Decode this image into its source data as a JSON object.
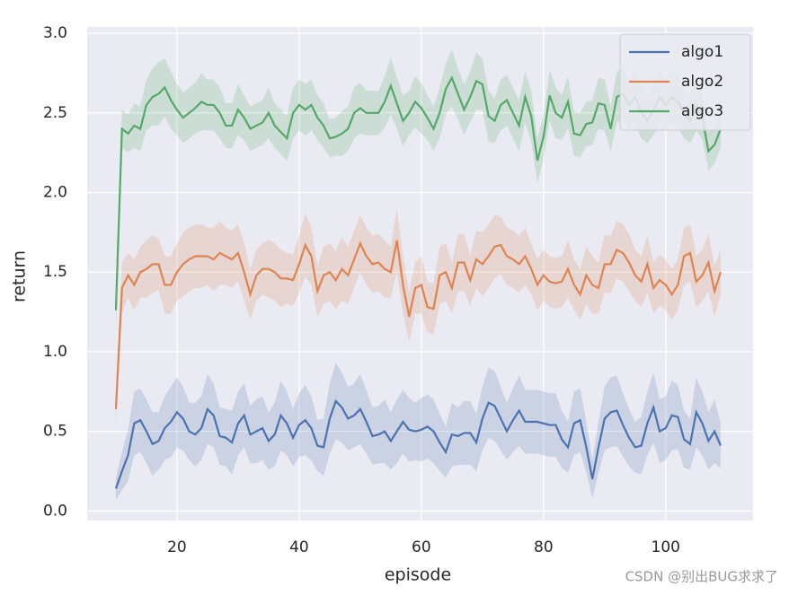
{
  "chart_data": {
    "type": "line",
    "x_label": "episode",
    "y_label": "return",
    "watermark": "CSDN @别出BUG求求了",
    "x": [
      10,
      11,
      12,
      13,
      14,
      15,
      16,
      17,
      18,
      19,
      20,
      21,
      22,
      23,
      24,
      25,
      26,
      27,
      28,
      29,
      30,
      31,
      32,
      33,
      34,
      35,
      36,
      37,
      38,
      39,
      40,
      41,
      42,
      43,
      44,
      45,
      46,
      47,
      48,
      49,
      50,
      51,
      52,
      53,
      54,
      55,
      56,
      57,
      58,
      59,
      60,
      61,
      62,
      63,
      64,
      65,
      66,
      67,
      68,
      69,
      70,
      71,
      72,
      73,
      74,
      75,
      76,
      77,
      78,
      79,
      80,
      81,
      82,
      83,
      84,
      85,
      86,
      87,
      88,
      89,
      90,
      91,
      92,
      93,
      94,
      95,
      96,
      97,
      98,
      99,
      100,
      101,
      102,
      103,
      104,
      105,
      106,
      107,
      108,
      109
    ],
    "series": [
      {
        "name": "algo1",
        "color": "#4c72b0",
        "values": [
          0.14,
          0.25,
          0.35,
          0.55,
          0.57,
          0.5,
          0.42,
          0.44,
          0.52,
          0.56,
          0.62,
          0.58,
          0.5,
          0.48,
          0.52,
          0.64,
          0.6,
          0.47,
          0.46,
          0.43,
          0.55,
          0.6,
          0.48,
          0.5,
          0.52,
          0.44,
          0.48,
          0.6,
          0.55,
          0.46,
          0.54,
          0.57,
          0.52,
          0.41,
          0.4,
          0.58,
          0.69,
          0.65,
          0.58,
          0.6,
          0.64,
          0.56,
          0.47,
          0.48,
          0.5,
          0.44,
          0.5,
          0.56,
          0.51,
          0.5,
          0.51,
          0.53,
          0.5,
          0.43,
          0.37,
          0.48,
          0.47,
          0.49,
          0.49,
          0.43,
          0.58,
          0.68,
          0.66,
          0.58,
          0.5,
          0.57,
          0.63,
          0.56,
          0.56,
          0.56,
          0.55,
          0.54,
          0.54,
          0.45,
          0.4,
          0.55,
          0.57,
          0.4,
          0.2,
          0.4,
          0.58,
          0.62,
          0.63,
          0.54,
          0.46,
          0.4,
          0.41,
          0.55,
          0.65,
          0.5,
          0.52,
          0.6,
          0.59,
          0.45,
          0.42,
          0.62,
          0.55,
          0.44,
          0.5,
          0.41
        ],
        "ci": [
          0.07,
          0.12,
          0.16,
          0.2,
          0.2,
          0.2,
          0.2,
          0.18,
          0.2,
          0.22,
          0.22,
          0.2,
          0.18,
          0.2,
          0.2,
          0.22,
          0.2,
          0.18,
          0.18,
          0.2,
          0.2,
          0.2,
          0.18,
          0.2,
          0.2,
          0.18,
          0.2,
          0.22,
          0.2,
          0.18,
          0.2,
          0.22,
          0.2,
          0.16,
          0.18,
          0.22,
          0.24,
          0.22,
          0.2,
          0.2,
          0.22,
          0.2,
          0.18,
          0.18,
          0.2,
          0.18,
          0.2,
          0.2,
          0.2,
          0.18,
          0.2,
          0.2,
          0.2,
          0.18,
          0.16,
          0.2,
          0.18,
          0.2,
          0.2,
          0.18,
          0.2,
          0.22,
          0.22,
          0.2,
          0.18,
          0.2,
          0.22,
          0.2,
          0.2,
          0.2,
          0.2,
          0.2,
          0.2,
          0.18,
          0.16,
          0.2,
          0.2,
          0.16,
          0.12,
          0.16,
          0.2,
          0.22,
          0.22,
          0.2,
          0.18,
          0.16,
          0.18,
          0.2,
          0.22,
          0.2,
          0.2,
          0.22,
          0.2,
          0.18,
          0.16,
          0.22,
          0.2,
          0.18,
          0.2,
          0.14
        ]
      },
      {
        "name": "algo2",
        "color": "#dd8452",
        "values": [
          0.64,
          1.4,
          1.48,
          1.42,
          1.5,
          1.52,
          1.55,
          1.55,
          1.42,
          1.42,
          1.5,
          1.55,
          1.58,
          1.6,
          1.6,
          1.6,
          1.58,
          1.62,
          1.6,
          1.58,
          1.62,
          1.5,
          1.36,
          1.48,
          1.52,
          1.52,
          1.5,
          1.46,
          1.46,
          1.45,
          1.55,
          1.67,
          1.6,
          1.38,
          1.48,
          1.5,
          1.45,
          1.52,
          1.48,
          1.58,
          1.68,
          1.6,
          1.55,
          1.56,
          1.52,
          1.5,
          1.7,
          1.42,
          1.22,
          1.4,
          1.42,
          1.28,
          1.27,
          1.48,
          1.5,
          1.4,
          1.56,
          1.56,
          1.45,
          1.58,
          1.55,
          1.6,
          1.66,
          1.67,
          1.6,
          1.58,
          1.55,
          1.6,
          1.52,
          1.42,
          1.48,
          1.44,
          1.43,
          1.44,
          1.52,
          1.42,
          1.36,
          1.48,
          1.42,
          1.4,
          1.55,
          1.55,
          1.64,
          1.62,
          1.56,
          1.48,
          1.44,
          1.55,
          1.4,
          1.45,
          1.42,
          1.36,
          1.42,
          1.6,
          1.62,
          1.44,
          1.48,
          1.56,
          1.38,
          1.5
        ],
        "ci": [
          0.1,
          0.16,
          0.14,
          0.16,
          0.16,
          0.18,
          0.18,
          0.16,
          0.18,
          0.18,
          0.18,
          0.2,
          0.2,
          0.2,
          0.2,
          0.18,
          0.2,
          0.2,
          0.18,
          0.18,
          0.18,
          0.18,
          0.16,
          0.16,
          0.16,
          0.18,
          0.18,
          0.18,
          0.16,
          0.16,
          0.18,
          0.2,
          0.18,
          0.16,
          0.18,
          0.18,
          0.18,
          0.2,
          0.18,
          0.18,
          0.18,
          0.18,
          0.18,
          0.18,
          0.18,
          0.16,
          0.2,
          0.18,
          0.16,
          0.16,
          0.18,
          0.16,
          0.16,
          0.18,
          0.18,
          0.16,
          0.18,
          0.18,
          0.16,
          0.18,
          0.2,
          0.2,
          0.2,
          0.18,
          0.18,
          0.18,
          0.18,
          0.18,
          0.16,
          0.16,
          0.16,
          0.16,
          0.16,
          0.16,
          0.18,
          0.16,
          0.16,
          0.18,
          0.18,
          0.16,
          0.18,
          0.18,
          0.18,
          0.18,
          0.18,
          0.16,
          0.16,
          0.18,
          0.16,
          0.16,
          0.16,
          0.16,
          0.16,
          0.18,
          0.18,
          0.16,
          0.16,
          0.18,
          0.16,
          0.14
        ]
      },
      {
        "name": "algo3",
        "color": "#55a868",
        "values": [
          1.26,
          2.4,
          2.37,
          2.42,
          2.4,
          2.55,
          2.6,
          2.62,
          2.66,
          2.58,
          2.52,
          2.47,
          2.5,
          2.53,
          2.57,
          2.55,
          2.55,
          2.5,
          2.42,
          2.42,
          2.52,
          2.47,
          2.4,
          2.42,
          2.44,
          2.5,
          2.42,
          2.38,
          2.34,
          2.5,
          2.55,
          2.52,
          2.55,
          2.47,
          2.42,
          2.34,
          2.35,
          2.37,
          2.4,
          2.5,
          2.53,
          2.5,
          2.5,
          2.5,
          2.57,
          2.67,
          2.56,
          2.45,
          2.5,
          2.57,
          2.53,
          2.47,
          2.4,
          2.5,
          2.65,
          2.72,
          2.62,
          2.52,
          2.6,
          2.7,
          2.68,
          2.48,
          2.45,
          2.55,
          2.58,
          2.5,
          2.42,
          2.6,
          2.48,
          2.2,
          2.35,
          2.61,
          2.5,
          2.47,
          2.57,
          2.37,
          2.36,
          2.43,
          2.44,
          2.56,
          2.55,
          2.4,
          2.6,
          2.62,
          2.55,
          2.6,
          2.5,
          2.45,
          2.52,
          2.6,
          2.55,
          2.6,
          2.57,
          2.5,
          2.45,
          2.55,
          2.47,
          2.26,
          2.3,
          2.4
        ],
        "ci": [
          0.12,
          0.12,
          0.12,
          0.14,
          0.14,
          0.16,
          0.18,
          0.2,
          0.18,
          0.18,
          0.16,
          0.16,
          0.16,
          0.16,
          0.18,
          0.16,
          0.16,
          0.16,
          0.14,
          0.14,
          0.16,
          0.14,
          0.14,
          0.14,
          0.14,
          0.16,
          0.14,
          0.14,
          0.14,
          0.16,
          0.16,
          0.16,
          0.16,
          0.14,
          0.14,
          0.12,
          0.12,
          0.14,
          0.14,
          0.16,
          0.16,
          0.14,
          0.14,
          0.14,
          0.16,
          0.18,
          0.16,
          0.16,
          0.14,
          0.16,
          0.16,
          0.14,
          0.14,
          0.16,
          0.16,
          0.18,
          0.16,
          0.16,
          0.16,
          0.18,
          0.16,
          0.16,
          0.14,
          0.16,
          0.16,
          0.16,
          0.16,
          0.16,
          0.16,
          0.14,
          0.14,
          0.16,
          0.16,
          0.14,
          0.16,
          0.14,
          0.14,
          0.14,
          0.14,
          0.16,
          0.16,
          0.14,
          0.16,
          0.16,
          0.16,
          0.16,
          0.16,
          0.14,
          0.16,
          0.16,
          0.16,
          0.16,
          0.16,
          0.16,
          0.14,
          0.16,
          0.14,
          0.12,
          0.12,
          0.12
        ]
      }
    ],
    "xlim": [
      5.3,
      114.3
    ],
    "ylim": [
      -0.06,
      3.04
    ],
    "xticks": [
      20,
      40,
      60,
      80,
      100
    ],
    "yticks": [
      {
        "value": 0,
        "label": "0.0"
      },
      {
        "value": 0.5,
        "label": "0.5"
      },
      {
        "value": 1,
        "label": "1.0"
      },
      {
        "value": 1.5,
        "label": "1.5"
      },
      {
        "value": 2,
        "label": "2.0"
      },
      {
        "value": 2.5,
        "label": "2.5"
      },
      {
        "value": 3,
        "label": "3.0"
      }
    ],
    "grid": true,
    "legend": "upper right"
  }
}
